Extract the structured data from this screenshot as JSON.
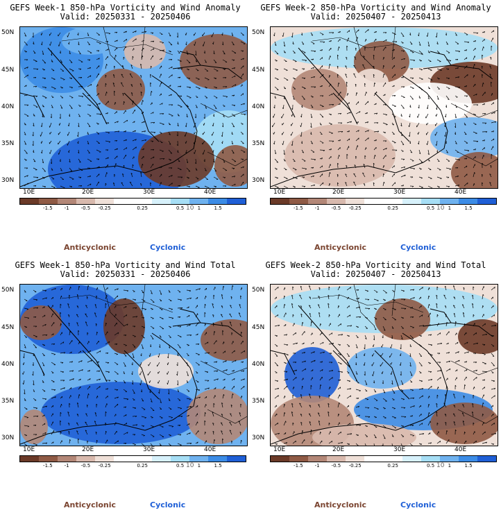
{
  "panels": [
    {
      "title": "GEFS Week-1 850-hPa Vorticity and Wind Anomaly",
      "valid": "Valid: 20250331 - 20250406",
      "variant": 1
    },
    {
      "title": "GEFS Week-2 850-hPa Vorticity and Wind Anomaly",
      "valid": "Valid: 20250407 - 20250413",
      "variant": 2
    },
    {
      "title": "GEFS Week-1 850-hPa Vorticity and Wind Total",
      "valid": "Valid: 20250331 - 20250406",
      "variant": 3
    },
    {
      "title": "GEFS Week-2 850-hPa Vorticity and Wind Total",
      "valid": "Valid: 20250407 - 20250413",
      "variant": 4
    }
  ],
  "lat_labels": [
    "50N",
    "45N",
    "40N",
    "35N",
    "30N"
  ],
  "lon_labels": [
    "10E",
    "20E",
    "30E",
    "40E"
  ],
  "colorbar": {
    "colors": [
      "#6b3a28",
      "#8f5a45",
      "#b38777",
      "#d8b9ad",
      "#efe0d8",
      "#ffffff",
      "#ffffff",
      "#d7f1fb",
      "#a6def5",
      "#6fb2ef",
      "#3c8ce6",
      "#1f5fd6"
    ],
    "tick_labels": [
      "-1.5",
      "-1",
      "-0.5",
      "-0.25",
      "0.25",
      "0.5",
      "1",
      "1.5"
    ],
    "scale_tag": "10"
  },
  "legend": {
    "anticyclonic": "Anticyclonic",
    "cyclonic": "Cyclonic"
  }
}
